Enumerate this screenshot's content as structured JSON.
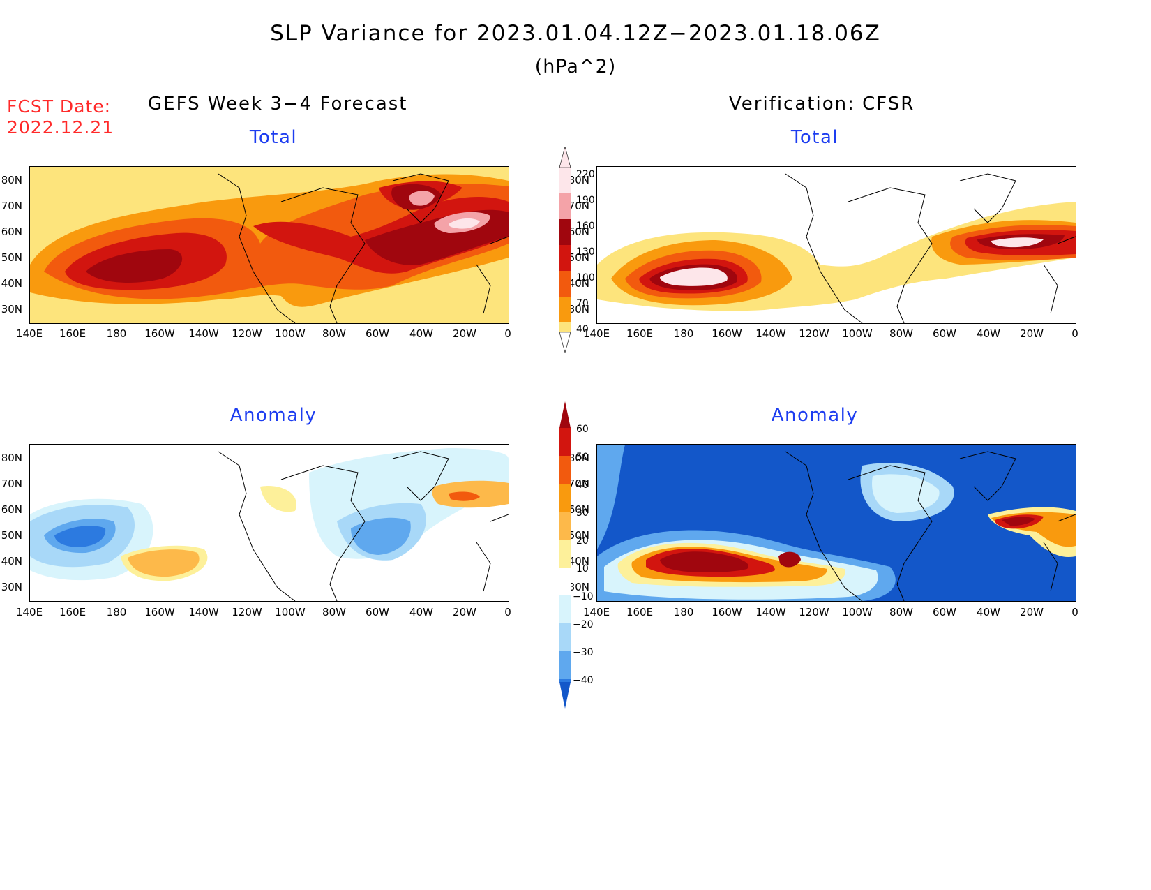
{
  "header": {
    "title": "SLP Variance for 2023.01.04.12Z−2023.01.18.06Z",
    "units": "(hPa^2)",
    "fcst_label": "FCST Date:",
    "fcst_date": "2022.12.21"
  },
  "columns": {
    "left_title": "GEFS Week 3−4 Forecast",
    "right_title": "Verification: CFSR"
  },
  "panels": {
    "forecast_total": "Total",
    "verification_total": "Total",
    "forecast_anomaly": "Anomaly",
    "verification_anomaly": "Anomaly"
  },
  "axes": {
    "lat_labels": [
      "80N",
      "70N",
      "60N",
      "50N",
      "40N",
      "30N"
    ],
    "lon_labels": [
      "140E",
      "160E",
      "180",
      "160W",
      "140W",
      "120W",
      "100W",
      "80W",
      "60W",
      "40W",
      "20W",
      "0"
    ]
  },
  "colorbars": {
    "total": {
      "levels": [
        "220",
        "190",
        "160",
        "130",
        "100",
        "70",
        "40"
      ],
      "colors": [
        "#fde6ea",
        "#f4a3a8",
        "#a0060e",
        "#d2150f",
        "#f25a0e",
        "#f99a0e",
        "#fde47c"
      ]
    },
    "anomaly": {
      "levels": [
        "60",
        "50",
        "40",
        "30",
        "20",
        "10",
        "−10",
        "−20",
        "−30",
        "−40"
      ],
      "colors": [
        "#a0060e",
        "#d2150f",
        "#f25a0e",
        "#f99a0e",
        "#fdb94a",
        "#fdf09a",
        "#ffffff",
        "#d8f4fc",
        "#a8d8f8",
        "#5fa8ee",
        "#2c7ae0",
        "#1357c9"
      ]
    }
  }
}
